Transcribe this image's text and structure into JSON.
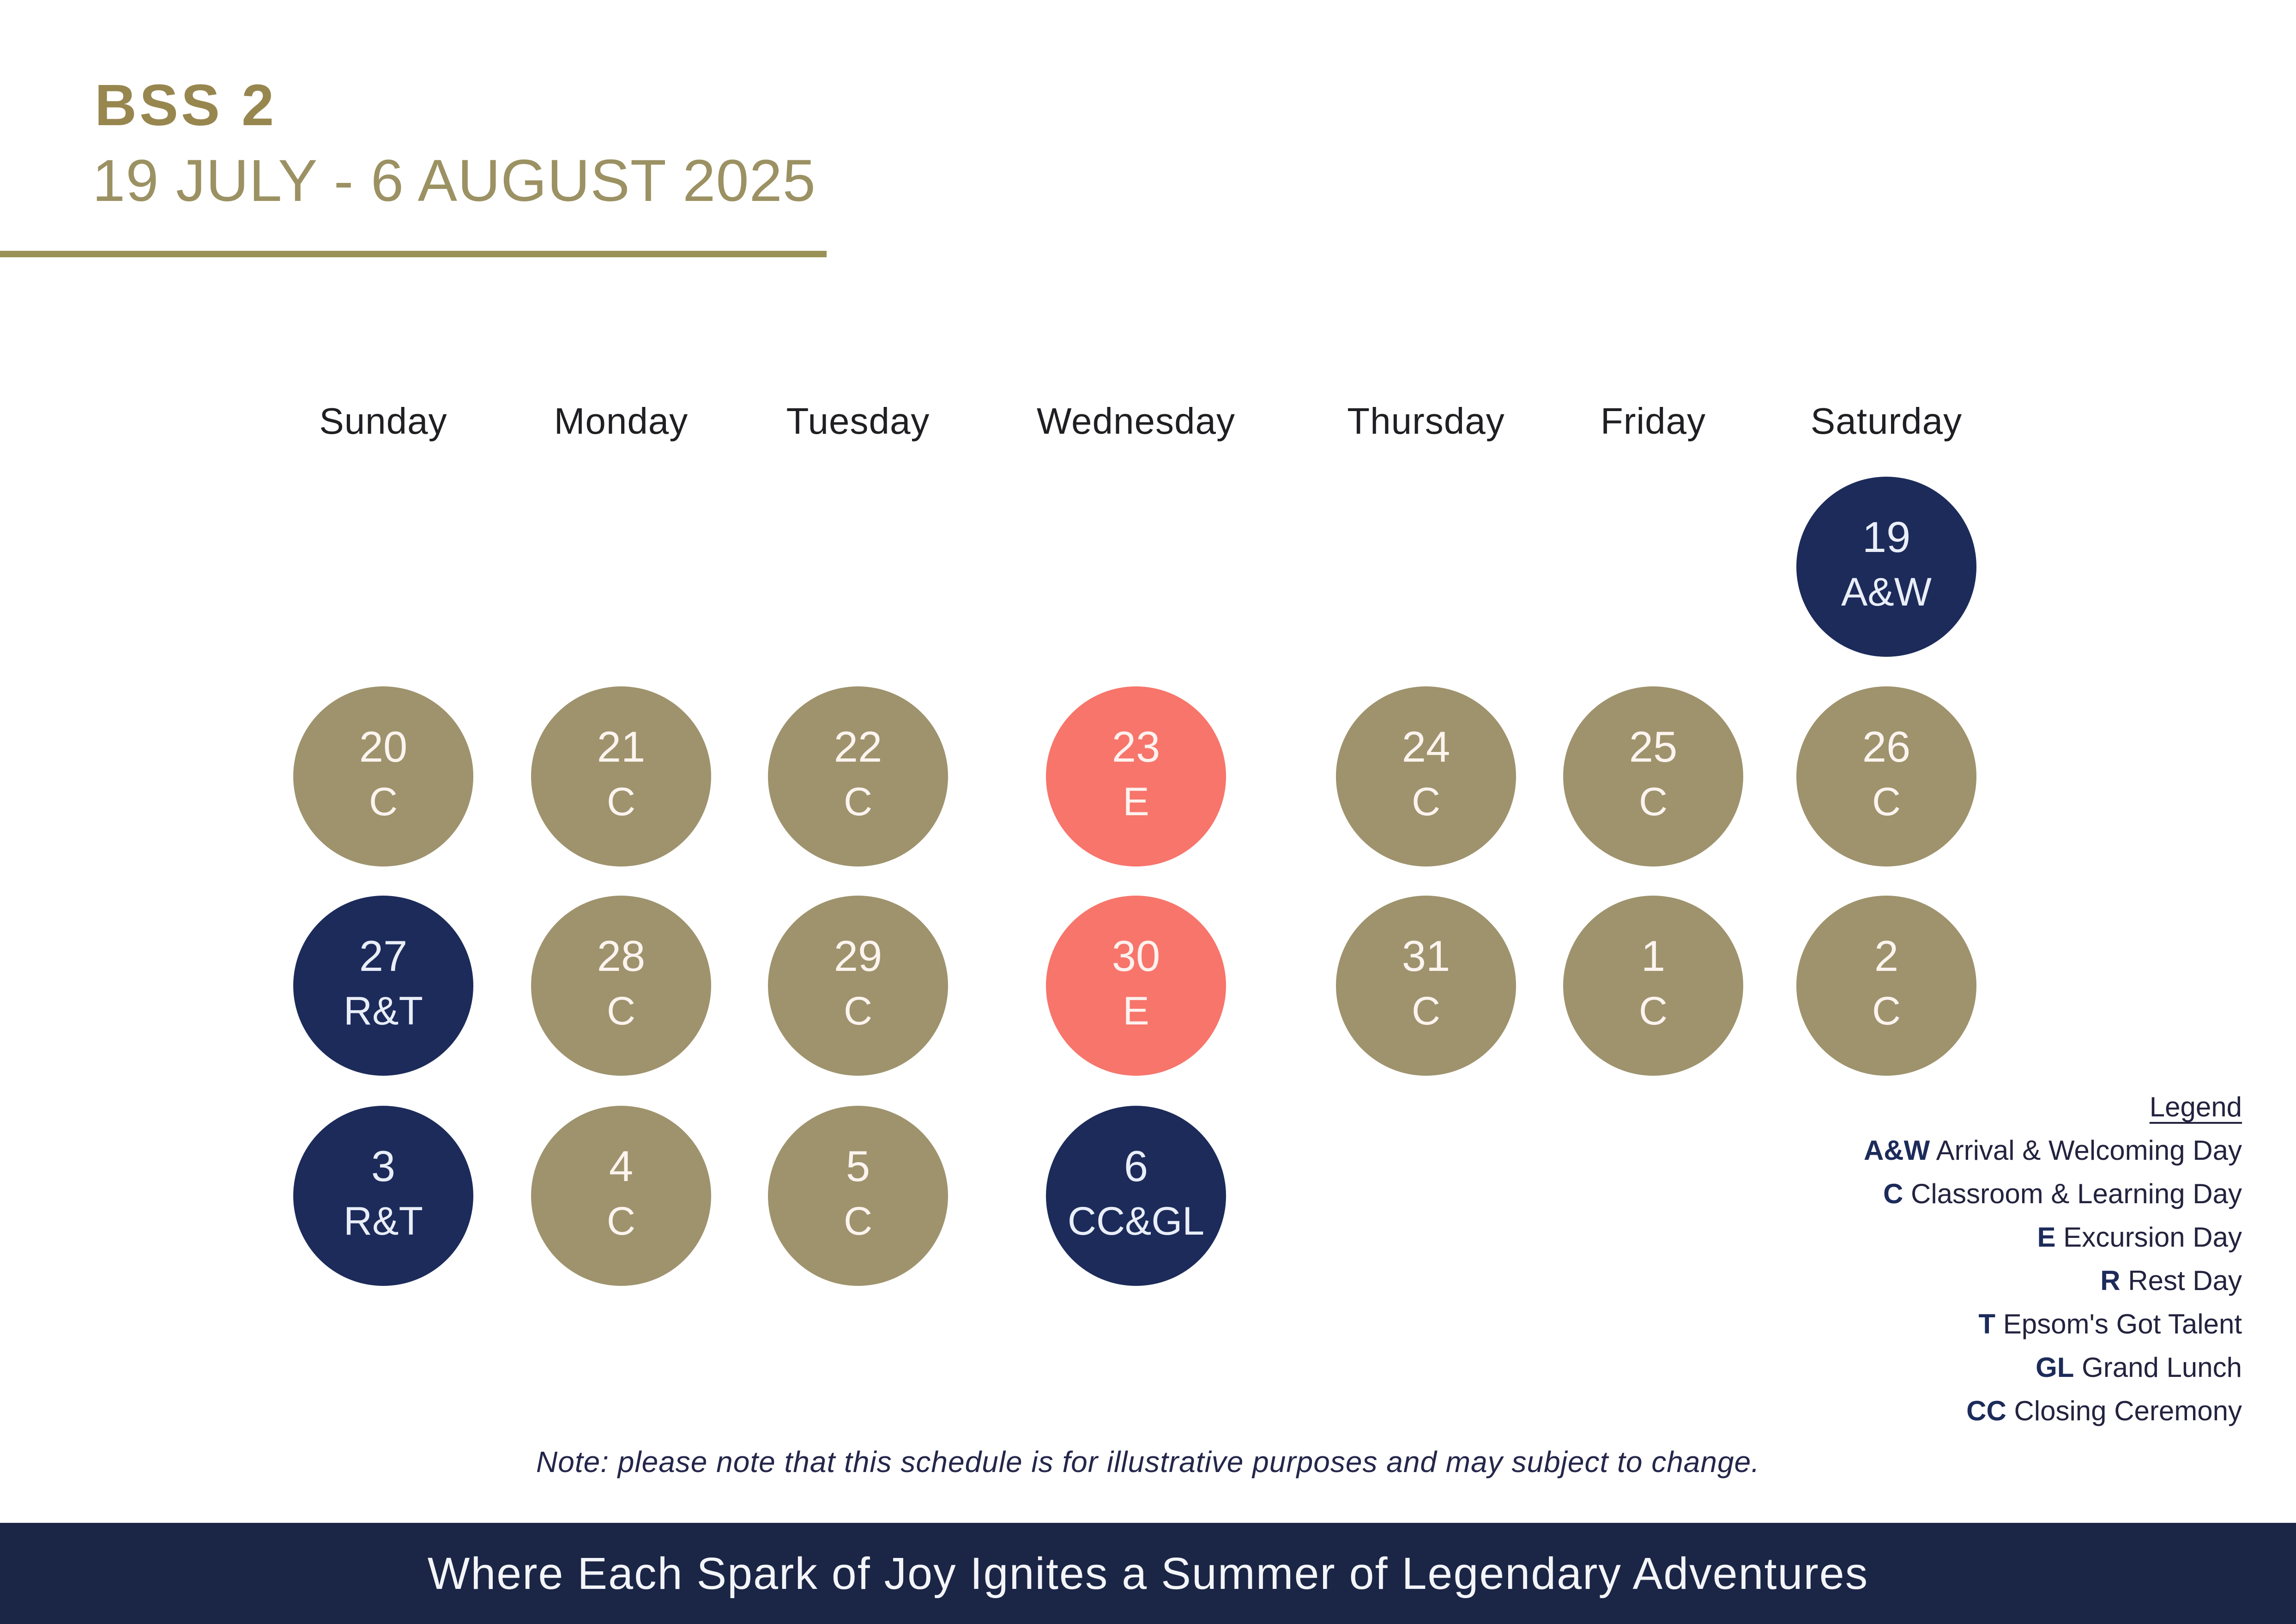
{
  "header": {
    "title": "BSS 2",
    "date_range": "19 JULY - 6 AUGUST 2025"
  },
  "calendar": {
    "day_headers": [
      "Sunday",
      "Monday",
      "Tuesday",
      "Wednesday",
      "Thursday",
      "Friday",
      "Saturday"
    ],
    "days": [
      {
        "date": "19",
        "code": "A&W",
        "color_key": "navy",
        "week": 0,
        "weekday": 6
      },
      {
        "date": "20",
        "code": "C",
        "color_key": "khaki",
        "week": 1,
        "weekday": 0
      },
      {
        "date": "21",
        "code": "C",
        "color_key": "khaki",
        "week": 1,
        "weekday": 1
      },
      {
        "date": "22",
        "code": "C",
        "color_key": "khaki",
        "week": 1,
        "weekday": 2
      },
      {
        "date": "23",
        "code": "E",
        "color_key": "coral",
        "week": 1,
        "weekday": 3
      },
      {
        "date": "24",
        "code": "C",
        "color_key": "khaki",
        "week": 1,
        "weekday": 4
      },
      {
        "date": "25",
        "code": "C",
        "color_key": "khaki",
        "week": 1,
        "weekday": 5
      },
      {
        "date": "26",
        "code": "C",
        "color_key": "khaki",
        "week": 1,
        "weekday": 6
      },
      {
        "date": "27",
        "code": "R&T",
        "color_key": "navy",
        "week": 2,
        "weekday": 0
      },
      {
        "date": "28",
        "code": "C",
        "color_key": "khaki",
        "week": 2,
        "weekday": 1
      },
      {
        "date": "29",
        "code": "C",
        "color_key": "khaki",
        "week": 2,
        "weekday": 2
      },
      {
        "date": "30",
        "code": "E",
        "color_key": "coral",
        "week": 2,
        "weekday": 3
      },
      {
        "date": "31",
        "code": "C",
        "color_key": "khaki",
        "week": 2,
        "weekday": 4
      },
      {
        "date": "1",
        "code": "C",
        "color_key": "khaki",
        "week": 2,
        "weekday": 5
      },
      {
        "date": "2",
        "code": "C",
        "color_key": "khaki",
        "week": 2,
        "weekday": 6
      },
      {
        "date": "3",
        "code": "R&T",
        "color_key": "navy",
        "week": 3,
        "weekday": 0
      },
      {
        "date": "4",
        "code": "C",
        "color_key": "khaki",
        "week": 3,
        "weekday": 1
      },
      {
        "date": "5",
        "code": "C",
        "color_key": "khaki",
        "week": 3,
        "weekday": 2
      },
      {
        "date": "6",
        "code": "CC&GL",
        "color_key": "navy",
        "week": 3,
        "weekday": 3
      }
    ]
  },
  "legend": {
    "title": "Legend",
    "items": [
      {
        "abbr": "A&W",
        "label": "Arrival & Welcoming Day"
      },
      {
        "abbr": "C",
        "label": "Classroom & Learning Day"
      },
      {
        "abbr": "E",
        "label": "Excursion Day"
      },
      {
        "abbr": "R",
        "label": "Rest Day"
      },
      {
        "abbr": "T",
        "label": "Epsom's Got Talent"
      },
      {
        "abbr": "GL",
        "label": "Grand Lunch"
      },
      {
        "abbr": "CC",
        "label": "Closing Ceremony"
      }
    ]
  },
  "note": {
    "text": "Note: please note that this schedule is for illustrative purposes and may subject to change."
  },
  "footer": {
    "text": "Where Each Spark of Joy Ignites a Summer of Legendary Adventures"
  },
  "colors": {
    "navy": "#1c2b5a",
    "khaki": "#9e936d",
    "coral": "#f7756b",
    "gold_title": "#97874f",
    "gold_line": "#999156",
    "footer_bg": "#1b2545"
  }
}
